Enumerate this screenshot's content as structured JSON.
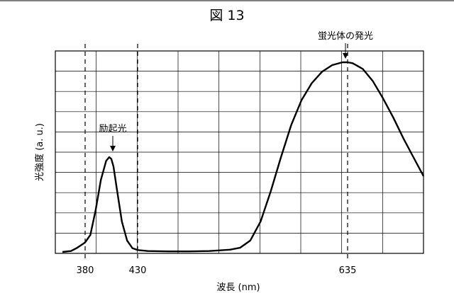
{
  "figure": {
    "label": "図 13"
  },
  "chart_data": {
    "type": "line",
    "xlabel": "波長 (nm)",
    "ylabel": "光強度 (a. u.)",
    "grid": true,
    "x_ticks": [
      380,
      430,
      635
    ],
    "reference_lines": [
      380,
      430,
      635
    ],
    "annotations": [
      {
        "text": "励起光",
        "x": 405
      },
      {
        "text": "蛍光体の発光",
        "x": 635
      }
    ],
    "series": [
      {
        "x": [
          340,
          355,
          365,
          375,
          380,
          385,
          390,
          395,
          400,
          403,
          405,
          407,
          410,
          415,
          420,
          425,
          430,
          440,
          460,
          480,
          500,
          520,
          530,
          540,
          550,
          560,
          570,
          580,
          590,
          600,
          610,
          620,
          630,
          635,
          640,
          650,
          660,
          670,
          680,
          690,
          700,
          710
        ],
        "y": [
          0.0,
          0.005,
          0.02,
          0.04,
          0.05,
          0.09,
          0.22,
          0.38,
          0.48,
          0.5,
          0.49,
          0.45,
          0.34,
          0.16,
          0.06,
          0.02,
          0.01,
          0.005,
          0.003,
          0.003,
          0.005,
          0.012,
          0.022,
          0.06,
          0.16,
          0.32,
          0.5,
          0.67,
          0.8,
          0.89,
          0.95,
          0.985,
          1.0,
          1.0,
          0.995,
          0.965,
          0.9,
          0.81,
          0.71,
          0.6,
          0.5,
          0.4
        ]
      }
    ]
  }
}
